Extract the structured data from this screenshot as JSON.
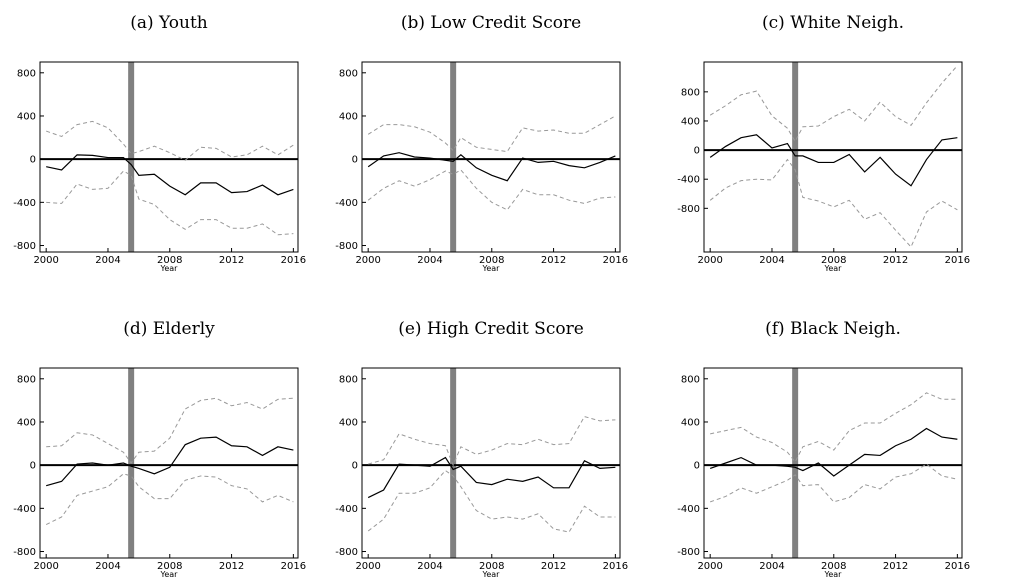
{
  "chart_data": [
    {
      "type": "line",
      "title": "(a) Youth",
      "x_label": "Year",
      "x": [
        2000,
        2001,
        2002,
        2003,
        2004,
        2005,
        2005.5,
        2006,
        2007,
        2008,
        2009,
        2010,
        2011,
        2012,
        2013,
        2014,
        2015,
        2016
      ],
      "xlim": [
        1999.6,
        2016.3
      ],
      "xticks": [
        2000,
        2004,
        2008,
        2012,
        2016
      ],
      "ylim": [
        -860,
        900
      ],
      "yticks": [
        -800,
        -400,
        0,
        400,
        800
      ],
      "hline": 0,
      "vline": 2005.5,
      "vline_color": "#808080",
      "series": [
        {
          "color": "#000000",
          "dashed": false,
          "values": [
            -70,
            -100,
            40,
            35,
            15,
            15,
            -50,
            -150,
            -140,
            -250,
            -330,
            -220,
            -220,
            -310,
            -300,
            -240,
            -330,
            -280
          ]
        },
        {
          "color": "#999999",
          "dashed": true,
          "values": [
            260,
            210,
            320,
            350,
            290,
            140,
            50,
            70,
            120,
            60,
            -10,
            110,
            100,
            20,
            40,
            120,
            40,
            130
          ]
        },
        {
          "color": "#999999",
          "dashed": true,
          "values": [
            -400,
            -410,
            -230,
            -280,
            -270,
            -110,
            -150,
            -370,
            -420,
            -560,
            -650,
            -560,
            -560,
            -640,
            -640,
            -600,
            -700,
            -690
          ]
        }
      ]
    },
    {
      "type": "line",
      "title": "(b) Low Credit Score",
      "x_label": "Year",
      "x": [
        2000,
        2001,
        2002,
        2003,
        2004,
        2005,
        2005.5,
        2006,
        2007,
        2008,
        2009,
        2010,
        2011,
        2012,
        2013,
        2014,
        2015,
        2016
      ],
      "xlim": [
        1999.6,
        2016.3
      ],
      "xticks": [
        2000,
        2004,
        2008,
        2012,
        2016
      ],
      "ylim": [
        -860,
        900
      ],
      "yticks": [
        -800,
        -400,
        0,
        400,
        800
      ],
      "hline": 0,
      "vline": 2005.5,
      "vline_color": "#808080",
      "series": [
        {
          "color": "#000000",
          "dashed": false,
          "values": [
            -70,
            30,
            60,
            20,
            10,
            -10,
            -20,
            40,
            -80,
            -150,
            -200,
            10,
            -30,
            -20,
            -60,
            -80,
            -30,
            30
          ]
        },
        {
          "color": "#999999",
          "dashed": true,
          "values": [
            230,
            320,
            320,
            300,
            250,
            150,
            80,
            200,
            110,
            90,
            70,
            290,
            260,
            270,
            240,
            240,
            320,
            400
          ]
        },
        {
          "color": "#999999",
          "dashed": true,
          "values": [
            -380,
            -270,
            -200,
            -250,
            -190,
            -110,
            -140,
            -100,
            -270,
            -400,
            -470,
            -280,
            -330,
            -330,
            -380,
            -410,
            -360,
            -350
          ]
        }
      ]
    },
    {
      "type": "line",
      "title": "(c) White Neigh.",
      "x_label": "Year",
      "x": [
        2000,
        2001,
        2002,
        2003,
        2004,
        2005,
        2005.5,
        2006,
        2007,
        2008,
        2009,
        2010,
        2011,
        2012,
        2013,
        2014,
        2015,
        2016
      ],
      "xlim": [
        1999.6,
        2016.3
      ],
      "xticks": [
        2000,
        2004,
        2008,
        2012,
        2016
      ],
      "ylim": [
        -1400,
        1210
      ],
      "yticks": [
        -800,
        -400,
        0,
        400,
        800
      ],
      "hline": 0,
      "vline": 2005.5,
      "vline_color": "#808080",
      "series": [
        {
          "color": "#000000",
          "dashed": false,
          "values": [
            -100,
            50,
            170,
            210,
            30,
            90,
            -80,
            -80,
            -170,
            -170,
            -60,
            -300,
            -100,
            -330,
            -490,
            -130,
            140,
            170
          ]
        },
        {
          "color": "#999999",
          "dashed": true,
          "values": [
            480,
            610,
            760,
            810,
            470,
            300,
            120,
            320,
            330,
            460,
            560,
            400,
            660,
            460,
            340,
            650,
            920,
            1160
          ]
        },
        {
          "color": "#999999",
          "dashed": true,
          "values": [
            -690,
            -520,
            -420,
            -400,
            -410,
            -130,
            -270,
            -650,
            -700,
            -780,
            -690,
            -950,
            -860,
            -1100,
            -1330,
            -850,
            -700,
            -820
          ]
        }
      ]
    },
    {
      "type": "line",
      "title": "(d) Elderly",
      "x_label": "Year",
      "x": [
        2000,
        2001,
        2002,
        2003,
        2004,
        2005,
        2005.5,
        2006,
        2007,
        2008,
        2009,
        2010,
        2011,
        2012,
        2013,
        2014,
        2015,
        2016
      ],
      "xlim": [
        1999.6,
        2016.3
      ],
      "xticks": [
        2000,
        2004,
        2008,
        2012,
        2016
      ],
      "ylim": [
        -860,
        900
      ],
      "yticks": [
        -800,
        -400,
        0,
        400,
        800
      ],
      "hline": 0,
      "vline": 2005.5,
      "vline_color": "#808080",
      "series": [
        {
          "color": "#000000",
          "dashed": false,
          "values": [
            -190,
            -150,
            10,
            20,
            0,
            20,
            -10,
            -30,
            -80,
            -20,
            190,
            250,
            260,
            180,
            170,
            90,
            170,
            140
          ]
        },
        {
          "color": "#999999",
          "dashed": true,
          "values": [
            170,
            180,
            300,
            280,
            200,
            120,
            20,
            120,
            130,
            250,
            520,
            600,
            620,
            550,
            580,
            520,
            610,
            620
          ]
        },
        {
          "color": "#999999",
          "dashed": true,
          "values": [
            -550,
            -480,
            -280,
            -240,
            -200,
            -80,
            -100,
            -200,
            -310,
            -310,
            -140,
            -100,
            -110,
            -190,
            -220,
            -340,
            -280,
            -340
          ]
        }
      ]
    },
    {
      "type": "line",
      "title": "(e) High Credit Score",
      "x_label": "Year",
      "x": [
        2000,
        2001,
        2002,
        2003,
        2004,
        2005,
        2005.5,
        2006,
        2007,
        2008,
        2009,
        2010,
        2011,
        2012,
        2013,
        2014,
        2015,
        2016
      ],
      "xlim": [
        1999.6,
        2016.3
      ],
      "xticks": [
        2000,
        2004,
        2008,
        2012,
        2016
      ],
      "ylim": [
        -860,
        900
      ],
      "yticks": [
        -800,
        -400,
        0,
        400,
        800
      ],
      "hline": 0,
      "vline": 2005.5,
      "vline_color": "#808080",
      "series": [
        {
          "color": "#000000",
          "dashed": false,
          "values": [
            -300,
            -230,
            10,
            0,
            -10,
            70,
            -40,
            -10,
            -160,
            -180,
            -130,
            -150,
            -110,
            -210,
            -210,
            40,
            -30,
            -20
          ]
        },
        {
          "color": "#999999",
          "dashed": true,
          "values": [
            10,
            50,
            290,
            240,
            200,
            180,
            0,
            170,
            100,
            140,
            200,
            190,
            240,
            190,
            200,
            450,
            410,
            420
          ]
        },
        {
          "color": "#999999",
          "dashed": true,
          "values": [
            -610,
            -500,
            -260,
            -260,
            -210,
            -50,
            -100,
            -200,
            -420,
            -500,
            -480,
            -500,
            -450,
            -590,
            -620,
            -380,
            -480,
            -480
          ]
        }
      ]
    },
    {
      "type": "line",
      "title": "(f) Black Neigh.",
      "x_label": "Year",
      "x": [
        2000,
        2001,
        2002,
        2003,
        2004,
        2005,
        2005.5,
        2006,
        2007,
        2008,
        2009,
        2010,
        2011,
        2012,
        2013,
        2014,
        2015,
        2016
      ],
      "xlim": [
        1999.6,
        2016.3
      ],
      "xticks": [
        2000,
        2004,
        2008,
        2012,
        2016
      ],
      "ylim": [
        -860,
        900
      ],
      "yticks": [
        -800,
        -400,
        0,
        400,
        800
      ],
      "hline": 0,
      "vline": 2005.5,
      "vline_color": "#808080",
      "series": [
        {
          "color": "#000000",
          "dashed": false,
          "values": [
            -30,
            20,
            70,
            0,
            0,
            -10,
            -20,
            -50,
            20,
            -100,
            0,
            100,
            90,
            180,
            240,
            340,
            260,
            240
          ]
        },
        {
          "color": "#999999",
          "dashed": true,
          "values": [
            290,
            320,
            350,
            260,
            210,
            120,
            30,
            170,
            220,
            140,
            320,
            390,
            390,
            480,
            560,
            670,
            610,
            610
          ]
        },
        {
          "color": "#999999",
          "dashed": true,
          "values": [
            -340,
            -290,
            -210,
            -260,
            -200,
            -140,
            -90,
            -190,
            -180,
            -340,
            -300,
            -180,
            -220,
            -110,
            -80,
            10,
            -100,
            -130
          ]
        }
      ]
    }
  ]
}
